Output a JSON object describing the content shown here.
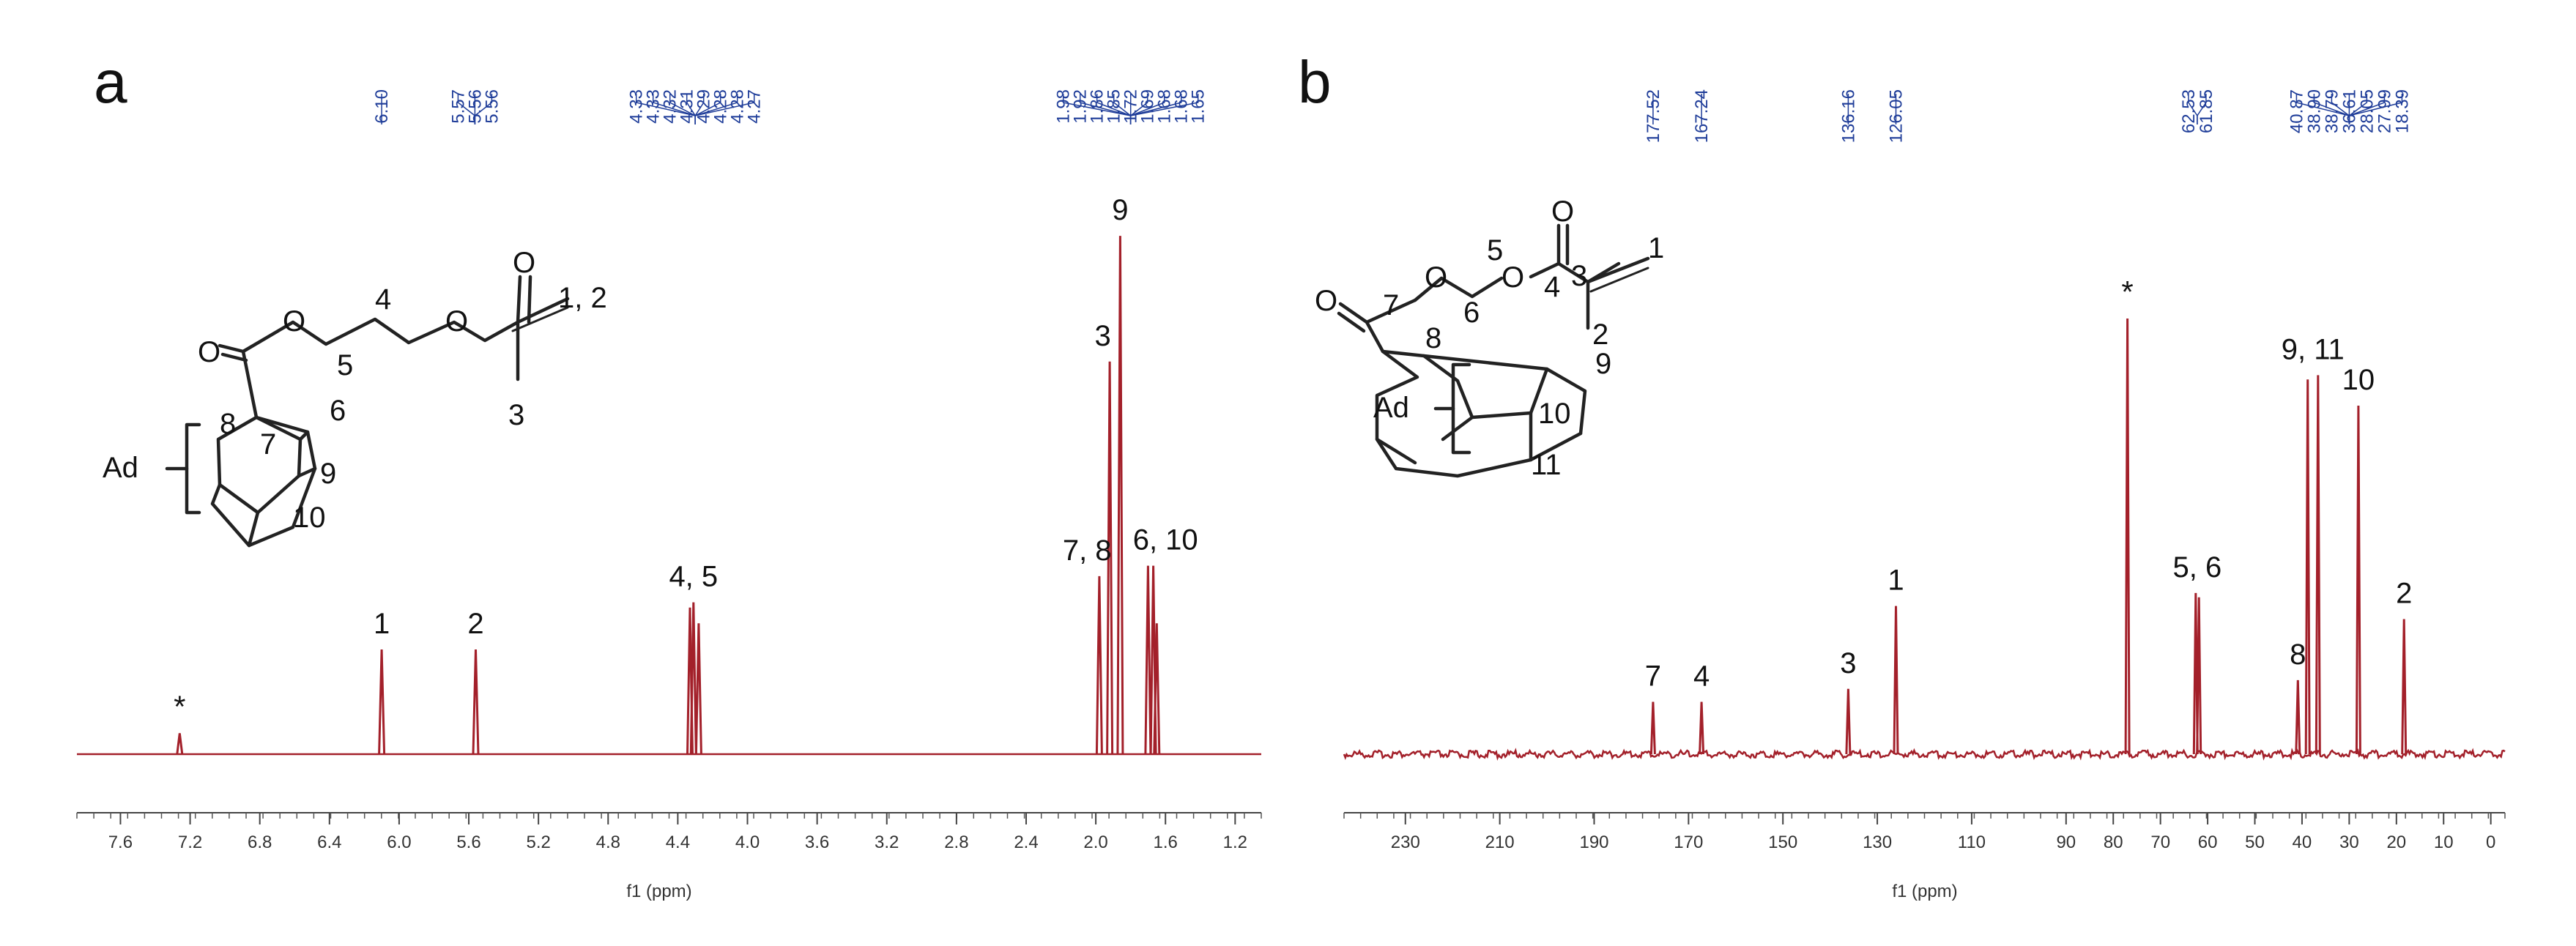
{
  "chart_data": [
    {
      "panel_label": "a",
      "type": "line",
      "xlabel": "f1 (ppm)",
      "xlim": [
        7.85,
        1.05
      ],
      "x_reversed": true,
      "x_ticks": [
        "7.6",
        "7.2",
        "6.8",
        "6.4",
        "6.0",
        "5.6",
        "5.2",
        "4.8",
        "4.4",
        "4.0",
        "3.6",
        "3.2",
        "2.8",
        "2.4",
        "2.0",
        "1.6",
        "1.2"
      ],
      "spectrum_color": "#a3202a",
      "label_color": "#1f3d99",
      "peaks": [
        {
          "ppm": 7.26,
          "h": 0.04
        },
        {
          "ppm": 6.1,
          "h": 0.2
        },
        {
          "ppm": 5.56,
          "h": 0.2
        },
        {
          "ppm": 4.33,
          "h": 0.28
        },
        {
          "ppm": 4.31,
          "h": 0.29
        },
        {
          "ppm": 4.28,
          "h": 0.25
        },
        {
          "ppm": 1.98,
          "h": 0.34
        },
        {
          "ppm": 1.92,
          "h": 0.75
        },
        {
          "ppm": 1.86,
          "h": 0.99
        },
        {
          "ppm": 1.7,
          "h": 0.36
        },
        {
          "ppm": 1.67,
          "h": 0.36
        },
        {
          "ppm": 1.65,
          "h": 0.25
        }
      ],
      "shift_groups": [
        {
          "labels": [
            "6.10"
          ]
        },
        {
          "labels": [
            "5.57",
            "5.56",
            "5.56"
          ]
        },
        {
          "labels": [
            "4.33",
            "4.33",
            "4.32",
            "4.31",
            "4.29",
            "4.28",
            "4.28",
            "4.27"
          ]
        },
        {
          "labels": [
            "1.98",
            "1.92",
            "1.86",
            "1.85",
            "1.72",
            "1.69",
            "1.68",
            "1.68",
            "1.65"
          ]
        }
      ],
      "peak_assignments": [
        {
          "text": "*",
          "ppm": 7.26,
          "h": 0.04
        },
        {
          "text": "1",
          "ppm": 6.1,
          "h": 0.2
        },
        {
          "text": "2",
          "ppm": 5.56,
          "h": 0.2
        },
        {
          "text": "4, 5",
          "ppm": 4.31,
          "h": 0.29
        },
        {
          "text": "7, 8",
          "ppm": 2.05,
          "h": 0.34
        },
        {
          "text": "3",
          "ppm": 1.96,
          "h": 0.75
        },
        {
          "text": "9",
          "ppm": 1.86,
          "h": 0.99
        },
        {
          "text": "6, 10",
          "ppm": 1.6,
          "h": 0.36
        }
      ],
      "structure_labels": {
        "ad": "Ad",
        "n1_2": "1, 2",
        "n3": "3",
        "n4": "4",
        "n5": "5",
        "n6": "6",
        "n7": "7",
        "n8": "8",
        "n9": "9",
        "n10": "10",
        "o": "O"
      }
    },
    {
      "panel_label": "b",
      "type": "line",
      "xlabel": "f1 (ppm)",
      "xlim": [
        243,
        -3
      ],
      "x_reversed": true,
      "x_ticks": [
        "230",
        "210",
        "190",
        "170",
        "150",
        "130",
        "110",
        "90",
        "80",
        "70",
        "60",
        "50",
        "40",
        "30",
        "20",
        "10",
        "0"
      ],
      "spectrum_color": "#a3202a",
      "label_color": "#1f3d99",
      "peaks": [
        {
          "ppm": 177.52,
          "h": 0.12
        },
        {
          "ppm": 167.24,
          "h": 0.12
        },
        {
          "ppm": 136.16,
          "h": 0.15
        },
        {
          "ppm": 126.05,
          "h": 0.34
        },
        {
          "ppm": 77.0,
          "h": 1.0
        },
        {
          "ppm": 62.53,
          "h": 0.37
        },
        {
          "ppm": 61.85,
          "h": 0.36
        },
        {
          "ppm": 40.87,
          "h": 0.17
        },
        {
          "ppm": 38.79,
          "h": 0.86
        },
        {
          "ppm": 36.61,
          "h": 0.87
        },
        {
          "ppm": 28.05,
          "h": 0.8
        },
        {
          "ppm": 18.39,
          "h": 0.31
        }
      ],
      "shift_groups": [
        {
          "labels": [
            "177.52"
          ]
        },
        {
          "labels": [
            "167.24"
          ]
        },
        {
          "labels": [
            "136.16"
          ]
        },
        {
          "labels": [
            "126.05"
          ]
        },
        {
          "labels": [
            "62.53",
            "61.85"
          ]
        },
        {
          "labels": [
            "40.87",
            "38.90",
            "38.79",
            "36.61",
            "28.05",
            "27.99",
            "18.39"
          ]
        }
      ],
      "peak_assignments": [
        {
          "text": "7",
          "ppm": 177.52,
          "h": 0.12
        },
        {
          "text": "4",
          "ppm": 167.24,
          "h": 0.12
        },
        {
          "text": "3",
          "ppm": 136.16,
          "h": 0.15
        },
        {
          "text": "1",
          "ppm": 126.05,
          "h": 0.34
        },
        {
          "text": "*",
          "ppm": 77.0,
          "h": 1.0
        },
        {
          "text": "5, 6",
          "ppm": 62.2,
          "h": 0.37
        },
        {
          "text": "8",
          "ppm": 40.87,
          "h": 0.17
        },
        {
          "text": "9, 11",
          "ppm": 37.7,
          "h": 0.87
        },
        {
          "text": "10",
          "ppm": 28.05,
          "h": 0.8
        },
        {
          "text": "2",
          "ppm": 18.39,
          "h": 0.31
        }
      ],
      "structure_labels": {
        "ad": "Ad",
        "n1": "1",
        "n2": "2",
        "n3": "3",
        "n4": "4",
        "n5": "5",
        "n6": "6",
        "n7": "7",
        "n8": "8",
        "n9": "9",
        "n10": "10",
        "n11": "11",
        "o": "O"
      }
    }
  ]
}
